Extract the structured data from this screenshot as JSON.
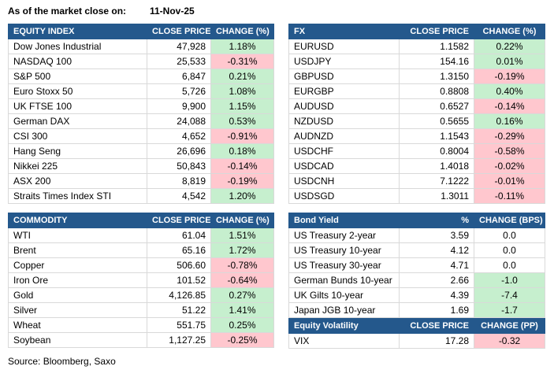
{
  "meta": {
    "as_of_label": "As of the market close on:",
    "date": "11-Nov-25",
    "source": "Source: Bloomberg, Saxo"
  },
  "colors": {
    "header_bg": "#24588C",
    "header_text": "#FFFFFF",
    "positive_bg": "#C6EFCE",
    "negative_bg": "#FFC7CE",
    "border": "#D9D9D9"
  },
  "tables": {
    "equity_index": {
      "headers": [
        "EQUITY INDEX",
        "CLOSE PRICE",
        "CHANGE (%)"
      ],
      "rows": [
        {
          "name": "Dow Jones Industrial",
          "value": "47,928",
          "change": "1.18%",
          "highlight": "pos"
        },
        {
          "name": "NASDAQ 100",
          "value": "25,533",
          "change": "-0.31%",
          "highlight": "neg"
        },
        {
          "name": "S&P 500",
          "value": "6,847",
          "change": "0.21%",
          "highlight": "pos"
        },
        {
          "name": "Euro Stoxx 50",
          "value": "5,726",
          "change": "1.08%",
          "highlight": "pos"
        },
        {
          "name": "UK FTSE 100",
          "value": "9,900",
          "change": "1.15%",
          "highlight": "pos"
        },
        {
          "name": "German DAX",
          "value": "24,088",
          "change": "0.53%",
          "highlight": "pos"
        },
        {
          "name": "CSI 300",
          "value": "4,652",
          "change": "-0.91%",
          "highlight": "neg"
        },
        {
          "name": "Hang Seng",
          "value": "26,696",
          "change": "0.18%",
          "highlight": "pos"
        },
        {
          "name": "Nikkei 225",
          "value": "50,843",
          "change": "-0.14%",
          "highlight": "neg"
        },
        {
          "name": "ASX 200",
          "value": "8,819",
          "change": "-0.19%",
          "highlight": "neg"
        },
        {
          "name": "Straits Times Index STI",
          "value": "4,542",
          "change": "1.20%",
          "highlight": "pos"
        }
      ]
    },
    "fx": {
      "headers": [
        "FX",
        "CLOSE PRICE",
        "CHANGE (%)"
      ],
      "rows": [
        {
          "name": "EURUSD",
          "value": "1.1582",
          "change": "0.22%",
          "highlight": "pos"
        },
        {
          "name": "USDJPY",
          "value": "154.16",
          "change": "0.01%",
          "highlight": "pos"
        },
        {
          "name": "GBPUSD",
          "value": "1.3150",
          "change": "-0.19%",
          "highlight": "neg"
        },
        {
          "name": "EURGBP",
          "value": "0.8808",
          "change": "0.40%",
          "highlight": "pos"
        },
        {
          "name": "AUDUSD",
          "value": "0.6527",
          "change": "-0.14%",
          "highlight": "neg"
        },
        {
          "name": "NZDUSD",
          "value": "0.5655",
          "change": "0.16%",
          "highlight": "pos"
        },
        {
          "name": "AUDNZD",
          "value": "1.1543",
          "change": "-0.29%",
          "highlight": "neg"
        },
        {
          "name": "USDCHF",
          "value": "0.8004",
          "change": "-0.58%",
          "highlight": "neg"
        },
        {
          "name": "USDCAD",
          "value": "1.4018",
          "change": "-0.02%",
          "highlight": "neg"
        },
        {
          "name": "USDCNH",
          "value": "7.1222",
          "change": "-0.01%",
          "highlight": "neg"
        },
        {
          "name": "USDSGD",
          "value": "1.3011",
          "change": "-0.11%",
          "highlight": "neg"
        }
      ]
    },
    "commodity": {
      "headers": [
        "COMMODITY",
        "CLOSE PRICE",
        "CHANGE (%)"
      ],
      "rows": [
        {
          "name": "WTI",
          "value": "61.04",
          "change": "1.51%",
          "highlight": "pos"
        },
        {
          "name": "Brent",
          "value": "65.16",
          "change": "1.72%",
          "highlight": "pos"
        },
        {
          "name": "Copper",
          "value": "506.60",
          "change": "-0.78%",
          "highlight": "neg"
        },
        {
          "name": "Iron Ore",
          "value": "101.52",
          "change": "-0.64%",
          "highlight": "neg"
        },
        {
          "name": "Gold",
          "value": "4,126.85",
          "change": "0.27%",
          "highlight": "pos"
        },
        {
          "name": "Silver",
          "value": "51.22",
          "change": "1.41%",
          "highlight": "pos"
        },
        {
          "name": "Wheat",
          "value": "551.75",
          "change": "0.25%",
          "highlight": "pos"
        },
        {
          "name": "Soybean",
          "value": "1,127.25",
          "change": "-0.25%",
          "highlight": "neg"
        }
      ]
    },
    "bond_yield": {
      "headers": [
        "Bond Yield",
        "%",
        "CHANGE (BPS)"
      ],
      "rows": [
        {
          "name": "US Treasury 2-year",
          "value": "3.59",
          "change": "0.0",
          "highlight": "none"
        },
        {
          "name": "US Treasury 10-year",
          "value": "4.12",
          "change": "0.0",
          "highlight": "none"
        },
        {
          "name": "US Treasury 30-year",
          "value": "4.71",
          "change": "0.0",
          "highlight": "none"
        },
        {
          "name": "German Bunds 10-year",
          "value": "2.66",
          "change": "-1.0",
          "highlight": "pos"
        },
        {
          "name": "UK Gilts 10-year",
          "value": "4.39",
          "change": "-7.4",
          "highlight": "pos"
        },
        {
          "name": "Japan JGB 10-year",
          "value": "1.69",
          "change": "-1.7",
          "highlight": "pos"
        }
      ]
    },
    "equity_volatility": {
      "headers": [
        "Equity Volatility",
        "CLOSE PRICE",
        "CHANGE (PP)"
      ],
      "rows": [
        {
          "name": "VIX",
          "value": "17.28",
          "change": "-0.32",
          "highlight": "neg"
        }
      ]
    }
  }
}
